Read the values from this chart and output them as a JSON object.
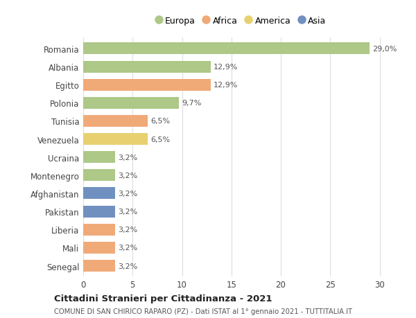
{
  "countries": [
    "Romania",
    "Albania",
    "Egitto",
    "Polonia",
    "Tunisia",
    "Venezuela",
    "Ucraina",
    "Montenegro",
    "Afghanistan",
    "Pakistan",
    "Liberia",
    "Mali",
    "Senegal"
  ],
  "values": [
    29.0,
    12.9,
    12.9,
    9.7,
    6.5,
    6.5,
    3.2,
    3.2,
    3.2,
    3.2,
    3.2,
    3.2,
    3.2
  ],
  "labels": [
    "29,0%",
    "12,9%",
    "12,9%",
    "9,7%",
    "6,5%",
    "6,5%",
    "3,2%",
    "3,2%",
    "3,2%",
    "3,2%",
    "3,2%",
    "3,2%",
    "3,2%"
  ],
  "colors": [
    "#adc887",
    "#adc887",
    "#f0aa78",
    "#adc887",
    "#f0aa78",
    "#e8d070",
    "#adc887",
    "#adc887",
    "#7090c0",
    "#7090c0",
    "#f0aa78",
    "#f0aa78",
    "#f0aa78"
  ],
  "legend_labels": [
    "Europa",
    "Africa",
    "America",
    "Asia"
  ],
  "legend_colors": [
    "#adc887",
    "#f0aa78",
    "#e8d070",
    "#7090c0"
  ],
  "title": "Cittadini Stranieri per Cittadinanza - 2021",
  "subtitle": "COMUNE DI SAN CHIRICO RAPARO (PZ) - Dati ISTAT al 1° gennaio 2021 - TUTTITALIA.IT",
  "xlim": [
    0,
    32
  ],
  "xticks": [
    0,
    5,
    10,
    15,
    20,
    25,
    30
  ],
  "background_color": "#ffffff",
  "grid_color": "#dddddd",
  "bar_height": 0.65
}
